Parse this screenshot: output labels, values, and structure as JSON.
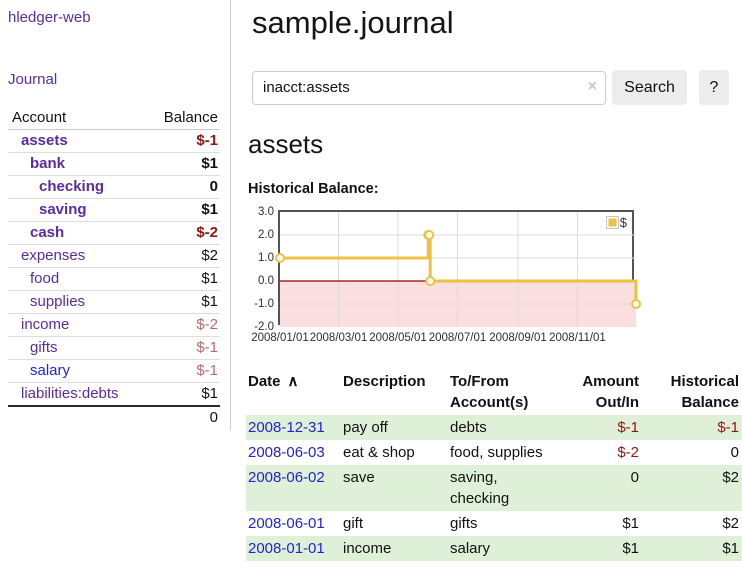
{
  "app": {
    "title": "hledger-web"
  },
  "sidebar": {
    "journal_link": "Journal",
    "accounts": {
      "header_account": "Account",
      "header_balance": "Balance",
      "rows": [
        {
          "name": "assets",
          "balance": "$-1",
          "depth": 1,
          "selected": true,
          "balance_tone": "negative-strong"
        },
        {
          "name": "bank",
          "balance": "$1",
          "depth": 2,
          "selected": true,
          "balance_tone": "normal"
        },
        {
          "name": "checking",
          "balance": "0",
          "depth": 3,
          "selected": true,
          "balance_tone": "normal"
        },
        {
          "name": "saving",
          "balance": "$1",
          "depth": 3,
          "selected": true,
          "balance_tone": "normal"
        },
        {
          "name": "cash",
          "balance": "$-2",
          "depth": 2,
          "selected": true,
          "balance_tone": "negative-strong"
        },
        {
          "name": "expenses",
          "balance": "$2",
          "depth": 1,
          "selected": false,
          "balance_tone": "normal"
        },
        {
          "name": "food",
          "balance": "$1",
          "depth": 2,
          "selected": false,
          "balance_tone": "normal"
        },
        {
          "name": "supplies",
          "balance": "$1",
          "depth": 2,
          "selected": false,
          "balance_tone": "normal"
        },
        {
          "name": "income",
          "balance": "$-2",
          "depth": 1,
          "selected": false,
          "balance_tone": "negative-soft"
        },
        {
          "name": "gifts",
          "balance": "$-1",
          "depth": 2,
          "selected": false,
          "balance_tone": "negative-soft"
        },
        {
          "name": "salary",
          "balance": "$-1",
          "depth": 2,
          "selected": false,
          "balance_tone": "negative-soft",
          "link_color": "blue"
        },
        {
          "name": "liabilities:debts",
          "balance": "$1",
          "depth": 1,
          "selected": false,
          "balance_tone": "normal"
        }
      ],
      "total": "0"
    }
  },
  "header": {
    "title": "sample.journal"
  },
  "search": {
    "value": "inacct:assets",
    "clear_icon": "×",
    "search_button": "Search",
    "help_button": "?"
  },
  "register": {
    "account_title": "assets",
    "chart_title": "Historical Balance:"
  },
  "chart_data": {
    "type": "line",
    "step": true,
    "title": "Historical Balance",
    "x": [
      "2008-01-01",
      "2008-06-01",
      "2008-06-02",
      "2008-06-03",
      "2008-12-31"
    ],
    "series": [
      {
        "name": "$",
        "values": [
          1,
          2,
          2,
          0,
          -1
        ],
        "color": "#edc240"
      }
    ],
    "x_range": [
      "2008-01-01",
      "2008-12-31"
    ],
    "ylim": [
      -2,
      3
    ],
    "yticks": [
      "3.0",
      "2.0",
      "1.0",
      "0.0",
      "-1.0",
      "-2.0"
    ],
    "xticks": [
      "2008/01/01",
      "2008/03/01",
      "2008/05/01",
      "2008/07/01",
      "2008/09/01",
      "2008/11/01"
    ],
    "grid": true,
    "legend_position": "top-right",
    "negative_fill": "#fbdede",
    "zero_line_color": "#8f0000"
  },
  "transactions": {
    "sort_indicator": "∧",
    "headers": {
      "date": "Date",
      "description": "Description",
      "accounts": "To/From Account(s)",
      "amount": "Amount Out/In",
      "balance": "Historical Balance"
    },
    "rows": [
      {
        "date": "2008-12-31",
        "description": "pay off",
        "accounts": "debts",
        "amount": "$-1",
        "balance": "$-1",
        "amount_negative": true,
        "balance_negative": true
      },
      {
        "date": "2008-06-03",
        "description": "eat & shop",
        "accounts": "food, supplies",
        "amount": "$-2",
        "balance": "0",
        "amount_negative": true,
        "balance_negative": false
      },
      {
        "date": "2008-06-02",
        "description": "save",
        "accounts": "saving, checking",
        "amount": "0",
        "balance": "$2",
        "amount_negative": false,
        "balance_negative": false
      },
      {
        "date": "2008-06-01",
        "description": "gift",
        "accounts": "gifts",
        "amount": "$1",
        "balance": "$2",
        "amount_negative": false,
        "balance_negative": false
      },
      {
        "date": "2008-01-01",
        "description": "income",
        "accounts": "salary",
        "amount": "$1",
        "balance": "$1",
        "amount_negative": false,
        "balance_negative": false
      }
    ]
  },
  "colors": {
    "link_purple": "#5a2ca0",
    "link_blue": "#2323d2",
    "negative_strong": "#941414",
    "negative_soft": "#b86a6a",
    "row_stripe": "#dff0d8",
    "chart_line": "#edc240",
    "negative_region": "#fbdede"
  }
}
